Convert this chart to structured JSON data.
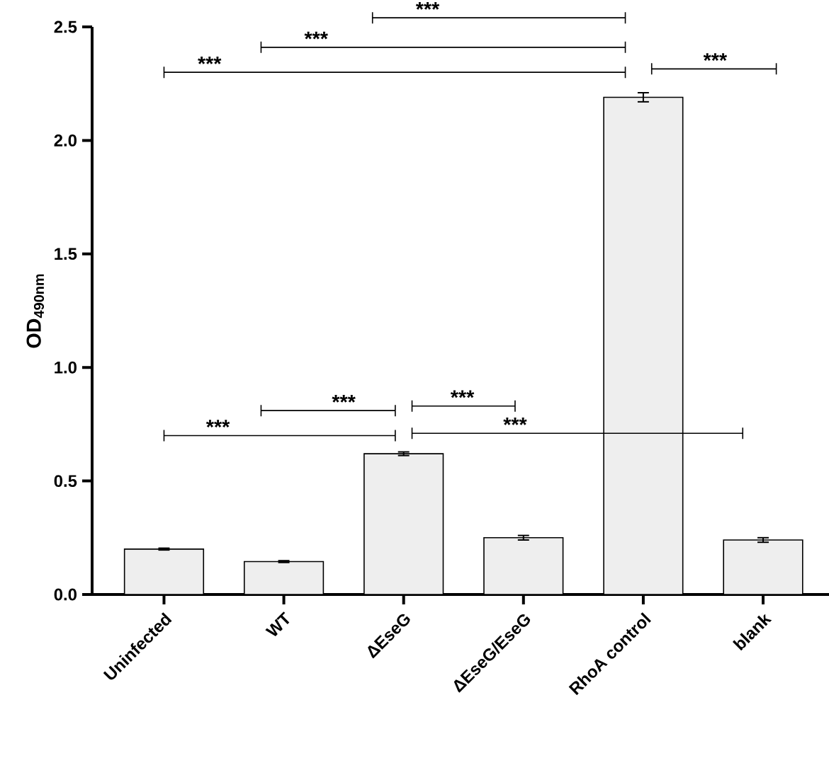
{
  "chart_data": {
    "type": "bar",
    "ylabel": "OD$_{490nm}$",
    "categories": [
      "Uninfected",
      "WT",
      "ΔEseG",
      "ΔEseG/EseG",
      "RhoA control",
      "blank"
    ],
    "values": [
      0.2,
      0.145,
      0.62,
      0.25,
      2.19,
      0.24
    ],
    "errors": [
      0.004,
      0.004,
      0.008,
      0.01,
      0.02,
      0.01
    ],
    "color": "#eeeeee",
    "ylim": [
      0,
      2.5
    ],
    "yticks": [
      {
        "value": 0,
        "label": "0.0"
      },
      {
        "value": 0.5,
        "label": "0.5"
      },
      {
        "value": 1.0,
        "label": "1.0"
      },
      {
        "value": 1.5,
        "label": "1.5"
      },
      {
        "value": 2.0,
        "label": "2.0"
      },
      {
        "value": 2.5,
        "label": "2.5"
      }
    ],
    "grid": false,
    "annotations": [
      "***",
      "***",
      "***",
      "***",
      "***",
      "***",
      "***",
      "***"
    ]
  }
}
